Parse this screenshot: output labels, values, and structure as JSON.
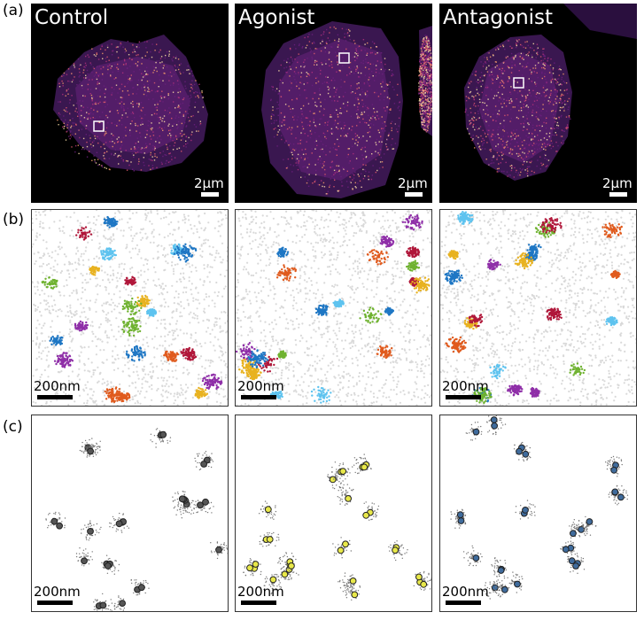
{
  "row_labels": [
    "(a)",
    "(b)",
    "(c)"
  ],
  "conditions": [
    "Control",
    "Agonist",
    "Antagonist"
  ],
  "scalebar_micro": "2µm",
  "scalebar_nano": "200nm",
  "colors": {
    "cell_palette": [
      "#2a0f3e",
      "#6b1f7d",
      "#b0307c",
      "#e05a6b",
      "#f59b6a",
      "#fde0a8"
    ],
    "cluster_palette": [
      "#1f77c4",
      "#6fb230",
      "#e8b220",
      "#5ec3ef",
      "#b0173a",
      "#e05b1e",
      "#8f2fa8"
    ],
    "noise": "#d9d9d9",
    "c_fill": [
      "#555555",
      "#e8e84a",
      "#3f6b9c"
    ]
  },
  "icons": [
    "roi-box-icon"
  ]
}
